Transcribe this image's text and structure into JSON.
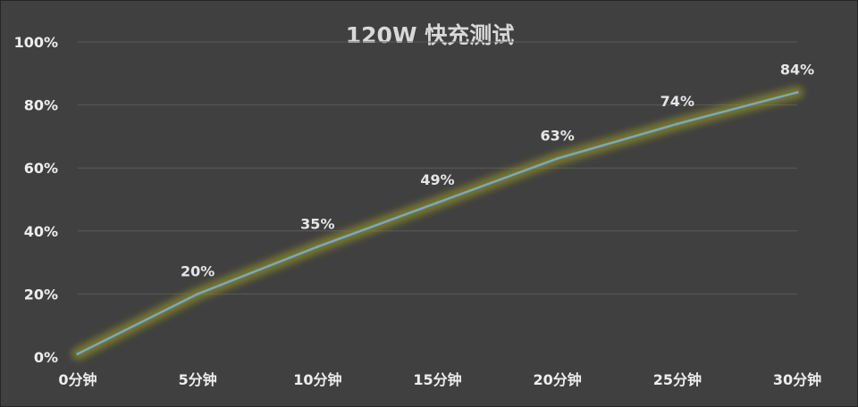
{
  "chart_data": {
    "type": "line",
    "title": "120W 快充测试",
    "categories": [
      "0分钟",
      "5分钟",
      "10分钟",
      "15分钟",
      "20分钟",
      "25分钟",
      "30分钟"
    ],
    "series": [
      {
        "values": [
          1,
          20,
          35,
          49,
          63,
          74,
          84
        ],
        "data_labels": [
          "",
          "20%",
          "35%",
          "49%",
          "63%",
          "74%",
          "84%"
        ],
        "color": "#79a7c4",
        "glow_color": "#8a8a2a"
      }
    ],
    "ylim": [
      0,
      100
    ],
    "y_ticks": [
      0,
      20,
      40,
      60,
      80,
      100
    ],
    "y_tick_labels": [
      "0%",
      "20%",
      "40%",
      "60%",
      "80%",
      "100%"
    ],
    "grid": true,
    "legend": "none"
  }
}
